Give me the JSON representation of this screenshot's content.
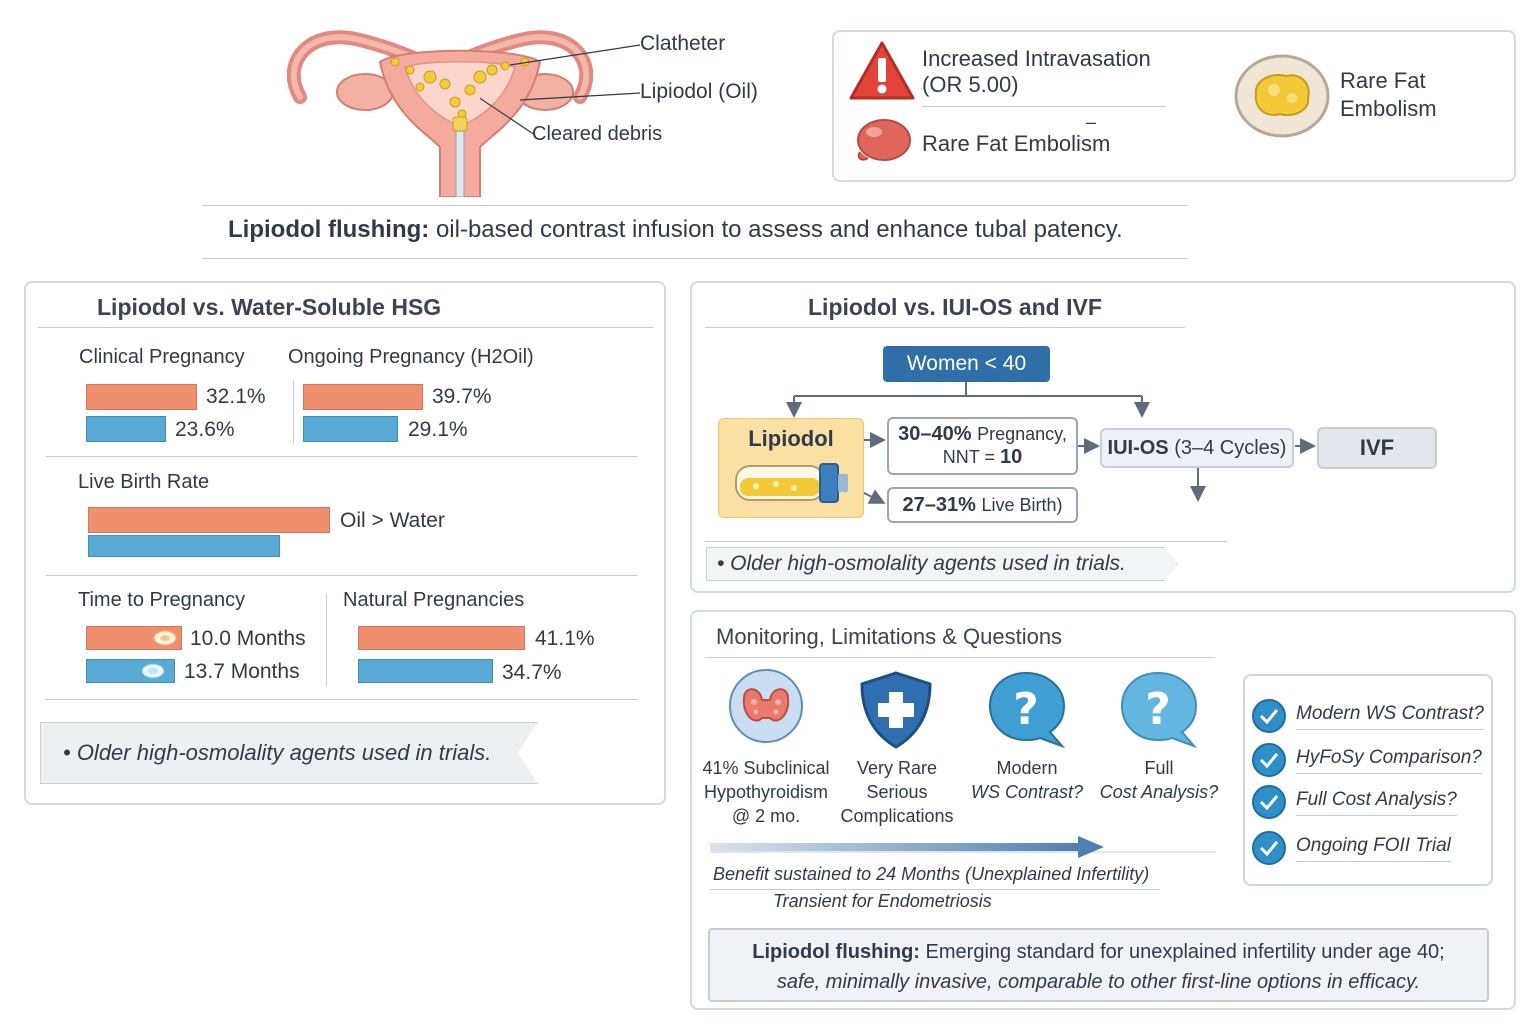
{
  "anatomy": {
    "catheter_label": "Clatheter",
    "lipiodol_label": "Lipiodol (Oil)",
    "debris_label": "Cleared debris"
  },
  "risks": {
    "intravasation_line1": "Increased Intravasation",
    "intravasation_line2": "(OR 5.00)",
    "embolism_left": "Rare Fat Embolism",
    "embolism_right_line1": "Rare Fat",
    "embolism_right_line2": "Embolism",
    "dash": "–"
  },
  "definition": {
    "term": "Lipiodol flushing:",
    "text": "oil-based contrast infusion to assess and enhance tubal patency."
  },
  "hsg_panel": {
    "title": "Lipiodol vs. Water-Soluble HSG",
    "clinical_pregnancy": {
      "label": "Clinical Pregnancy",
      "oil": "32.1%",
      "water": "23.6%"
    },
    "ongoing_pregnancy": {
      "label": "Ongoing Pregnancy (H2Oil)",
      "oil": "39.7%",
      "water": "29.1%"
    },
    "live_birth": {
      "label": "Live Birth Rate",
      "text": "Oil > Water"
    },
    "time_to_pregnancy": {
      "label": "Time to Pregnancy",
      "oil": "10.0 Months",
      "water": "13.7 Months"
    },
    "natural_pregnancies": {
      "label": "Natural Pregnancies",
      "oil": "41.1%",
      "water": "34.7%"
    },
    "note": "• Older high-osmolality agents used in trials."
  },
  "chart_data": [
    {
      "type": "bar",
      "title": "Clinical Pregnancy",
      "categories": [
        "Oil",
        "Water"
      ],
      "values": [
        32.1,
        23.6
      ]
    },
    {
      "type": "bar",
      "title": "Ongoing Pregnancy (H2Oil)",
      "categories": [
        "Oil",
        "Water"
      ],
      "values": [
        39.7,
        29.1
      ]
    },
    {
      "type": "bar",
      "title": "Time to Pregnancy",
      "categories": [
        "Oil",
        "Water"
      ],
      "values": [
        10.0,
        13.7
      ]
    },
    {
      "type": "bar",
      "title": "Natural Pregnancies",
      "categories": [
        "Oil",
        "Water"
      ],
      "values": [
        41.1,
        34.7
      ]
    }
  ],
  "ivf_panel": {
    "title": "Lipiodol vs. IUI-OS and IVF",
    "women": "Women < 40",
    "lipiodol": "Lipiodol",
    "pregnancy_bold": "30–40%",
    "pregnancy_rest": "Pregnancy,",
    "nnt_prefix": "NNT = ",
    "nnt_value": "10",
    "live_birth_bold": "27–31%",
    "live_birth_rest": "Live Birth)",
    "iui_bold": "IUI-OS",
    "iui_rest": "(3–4 Cycles)",
    "ivf": "IVF",
    "note": "• Older high-osmolality agents used in trials."
  },
  "monitoring": {
    "title": "Monitoring, Limitations & Questions",
    "items": [
      {
        "line1": "41% Subclinical",
        "line2": "Hypothyroidism",
        "line3": "@ 2 mo."
      },
      {
        "line1": "Very Rare",
        "line2": "Serious",
        "line3": "Complications"
      },
      {
        "line1": "Modern",
        "line2": "WS Contrast?"
      },
      {
        "line1": "Full",
        "line2": "Cost Analysis?"
      }
    ],
    "benefit_line1": "Benefit sustained to 24 Months (Unexplained Infertility)",
    "benefit_line2": "Transient for Endometriosis",
    "questions": [
      "Modern WS Contrast?",
      "HyFoSy Comparison?",
      "Full Cost Analysis?",
      "Ongoing FOII Trial"
    ],
    "conclusion_term": "Lipiodol flushing:",
    "conclusion_line1": "Emerging standard for unexplained infertility under age 40;",
    "conclusion_line2": "safe, minimally invasive, comparable to other first-line options in efficacy."
  },
  "colors": {
    "oil": "#ef8f6e",
    "water": "#5aaad6",
    "accent": "#2f6fa8",
    "check": "#2f8fc9"
  }
}
